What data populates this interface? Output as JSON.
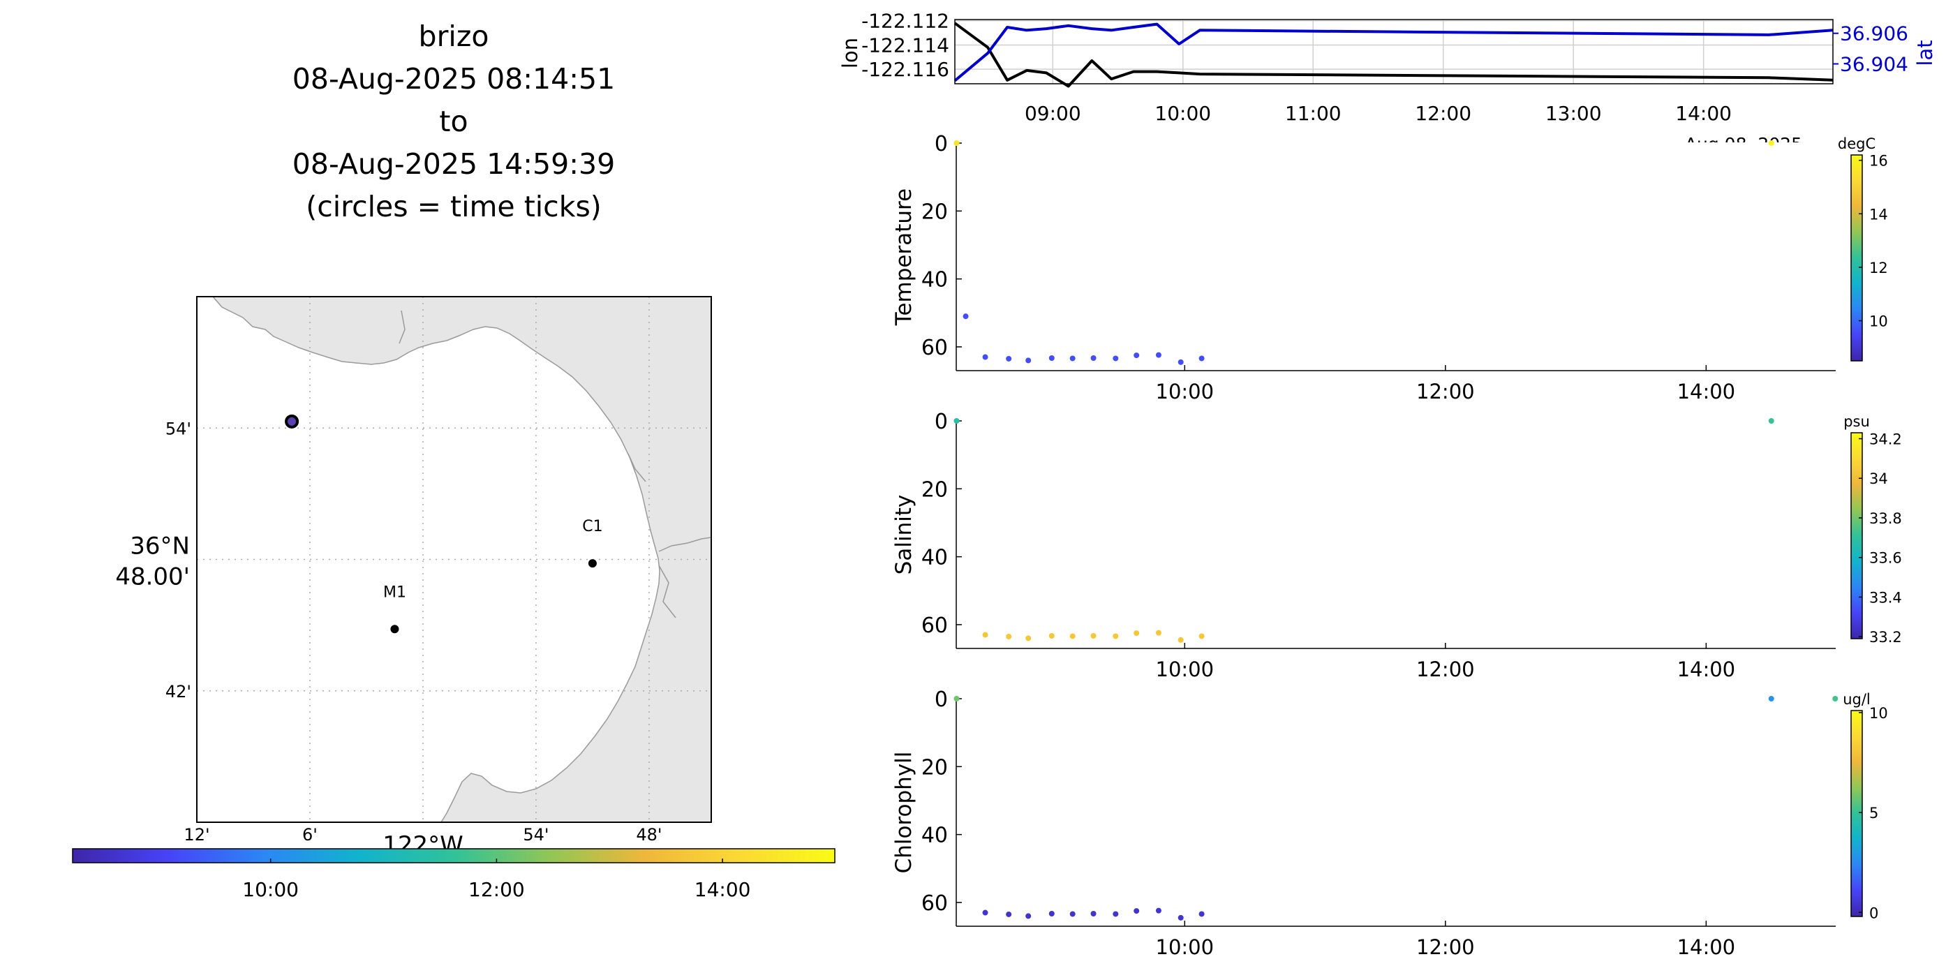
{
  "title": {
    "lines": [
      "brizo",
      "08-Aug-2025 08:14:51",
      "to",
      "08-Aug-2025 14:59:39",
      "(circles = time ticks)"
    ]
  },
  "colors": {
    "coast_fill": "#e6e6e6",
    "grid": "#aaaaaa",
    "lon_line": "#000000",
    "lat_line": "#0000cc",
    "colormap": [
      "#3e26a8",
      "#4743f8",
      "#2c86f5",
      "#11b3cd",
      "#30c299",
      "#90c656",
      "#eeb73a",
      "#fbd935",
      "#f9fb15"
    ]
  },
  "chart_data": [
    {
      "type": "map",
      "name": "track-map",
      "lat_ticks": [
        "54'",
        "36°N\n48.00'",
        "42'"
      ],
      "lat_values": [
        36.9,
        36.8,
        36.7
      ],
      "lon_ticks": [
        "12'",
        "6'",
        "122°W",
        "54'",
        "48'"
      ],
      "lon_values": [
        -122.2,
        -122.1,
        -122.0,
        -121.9,
        -121.8
      ],
      "xlim": [
        -122.2,
        -121.745
      ],
      "ylim": [
        36.6,
        37.0
      ],
      "stations": [
        {
          "label": "C1",
          "lon": -121.85,
          "lat": 36.797
        },
        {
          "label": "M1",
          "lon": -122.025,
          "lat": 36.747
        }
      ],
      "vehicle_position": {
        "lon": -122.116,
        "lat": 36.905
      },
      "grid": true
    },
    {
      "type": "colorbar",
      "name": "time-colorbar",
      "tick_labels": [
        "10:00",
        "12:00",
        "14:00"
      ],
      "tick_values": [
        10.0,
        12.0,
        14.0
      ],
      "range": [
        8.2475,
        14.994
      ]
    },
    {
      "type": "line",
      "name": "lon-lat-timeseries",
      "ylabel_left": "lon",
      "ylabel_right": "lat",
      "x_tick_labels": [
        "09:00",
        "10:00",
        "11:00",
        "12:00",
        "13:00",
        "14:00"
      ],
      "x_tick_values": [
        9,
        10,
        11,
        12,
        13,
        14
      ],
      "corner_label": "Aug 08, 2025",
      "xlim": [
        8.2475,
        14.994
      ],
      "ylim_left": [
        -122.1172,
        -122.1119
      ],
      "ylim_right": [
        36.9027,
        36.9069
      ],
      "left_tick_labels": [
        "-122.112",
        "-122.114",
        "-122.116"
      ],
      "left_tick_values": [
        -122.112,
        -122.114,
        -122.116
      ],
      "right_tick_labels": [
        "36.906",
        "36.904"
      ],
      "right_tick_values": [
        36.906,
        36.904
      ],
      "grid": true,
      "series": [
        {
          "axis": "left",
          "x": [
            8.2475,
            8.5,
            8.65,
            8.8,
            8.95,
            9.12,
            9.3,
            9.45,
            9.62,
            9.8,
            9.97,
            10.13,
            14.5,
            14.994
          ],
          "y": [
            -122.1122,
            -122.1142,
            -122.1169,
            -122.1161,
            -122.1163,
            -122.1174,
            -122.1153,
            -122.1168,
            -122.1162,
            -122.1162,
            -122.1163,
            -122.1164,
            -122.1167,
            -122.1169
          ]
        },
        {
          "axis": "right",
          "x": [
            8.2475,
            8.5,
            8.65,
            8.8,
            8.95,
            9.12,
            9.3,
            9.45,
            9.62,
            9.8,
            9.97,
            10.13,
            14.5,
            14.994
          ],
          "y": [
            36.9029,
            36.9047,
            36.9064,
            36.9062,
            36.9063,
            36.9065,
            36.9063,
            36.9062,
            36.9064,
            36.9066,
            36.9053,
            36.9062,
            36.9059,
            36.9062
          ]
        }
      ]
    },
    {
      "type": "scatter",
      "name": "temperature-panel",
      "ylabel": "Temperature",
      "units": "degC",
      "x_tick_labels": [
        "10:00",
        "12:00",
        "14:00"
      ],
      "x_tick_values": [
        10,
        12,
        14
      ],
      "y_tick_labels": [
        "0",
        "20",
        "40",
        "60"
      ],
      "y_tick_values": [
        0,
        20,
        40,
        60
      ],
      "xlim": [
        8.2475,
        14.994
      ],
      "ylim": [
        67,
        0
      ],
      "color_range": [
        8.5,
        16.2
      ],
      "color_tick_labels": [
        "16",
        "14",
        "12",
        "10"
      ],
      "color_tick_values": [
        16,
        14,
        12,
        10
      ],
      "points": {
        "x": [
          8.25,
          8.32,
          8.47,
          8.65,
          8.8,
          8.98,
          9.14,
          9.3,
          9.47,
          9.63,
          9.8,
          9.97,
          10.13,
          14.5
        ],
        "depth": [
          0,
          51,
          63,
          63.5,
          64,
          63.3,
          63.4,
          63.3,
          63.4,
          62.5,
          62.4,
          64.5,
          63.4,
          0
        ],
        "value": [
          15.5,
          9.6,
          9.6,
          9.6,
          9.6,
          9.6,
          9.6,
          9.6,
          9.6,
          9.6,
          9.6,
          9.6,
          9.6,
          16.0
        ]
      }
    },
    {
      "type": "scatter",
      "name": "salinity-panel",
      "ylabel": "Salinity",
      "units": "psu",
      "x_tick_labels": [
        "10:00",
        "12:00",
        "14:00"
      ],
      "x_tick_values": [
        10,
        12,
        14
      ],
      "y_tick_labels": [
        "0",
        "20",
        "40",
        "60"
      ],
      "y_tick_values": [
        0,
        20,
        40,
        60
      ],
      "xlim": [
        8.2475,
        14.994
      ],
      "ylim": [
        67,
        0
      ],
      "color_range": [
        33.19,
        34.23
      ],
      "color_tick_labels": [
        "34.2",
        "34",
        "33.8",
        "33.6",
        "33.4",
        "33.2"
      ],
      "color_tick_values": [
        34.2,
        34.0,
        33.8,
        33.6,
        33.4,
        33.2
      ],
      "points": {
        "x": [
          8.25,
          8.47,
          8.65,
          8.8,
          8.98,
          9.14,
          9.3,
          9.47,
          9.63,
          9.8,
          9.97,
          10.13,
          14.5
        ],
        "depth": [
          0,
          63,
          63.5,
          64,
          63.3,
          63.4,
          63.3,
          63.4,
          62.5,
          62.4,
          64.5,
          63.4,
          0
        ],
        "value": [
          33.68,
          34.03,
          34.03,
          34.03,
          34.03,
          34.03,
          34.03,
          34.03,
          34.03,
          34.03,
          34.03,
          34.03,
          33.72
        ]
      }
    },
    {
      "type": "scatter",
      "name": "chlorophyll-panel",
      "ylabel": "Chlorophyll",
      "units": "ug/l",
      "x_tick_labels": [
        "10:00",
        "12:00",
        "14:00"
      ],
      "x_tick_values": [
        10,
        12,
        14
      ],
      "y_tick_labels": [
        "0",
        "20",
        "40",
        "60"
      ],
      "y_tick_values": [
        0,
        20,
        40,
        60
      ],
      "xlim": [
        8.2475,
        14.994
      ],
      "ylim": [
        67,
        0
      ],
      "color_range": [
        -0.2,
        10.1
      ],
      "color_tick_labels": [
        "10",
        "5",
        "0"
      ],
      "color_tick_values": [
        10,
        5,
        0
      ],
      "points": {
        "x": [
          8.25,
          8.47,
          8.65,
          8.8,
          8.98,
          9.14,
          9.3,
          9.47,
          9.63,
          9.8,
          9.97,
          10.13,
          14.5,
          14.99
        ],
        "depth": [
          0,
          63,
          63.5,
          64,
          63.3,
          63.4,
          63.3,
          63.4,
          62.5,
          62.4,
          64.5,
          63.4,
          0,
          0
        ],
        "value": [
          5.8,
          0.4,
          0.4,
          0.4,
          0.4,
          0.4,
          0.4,
          0.4,
          0.4,
          0.4,
          0.4,
          0.4,
          2.8,
          5.2
        ]
      }
    }
  ]
}
